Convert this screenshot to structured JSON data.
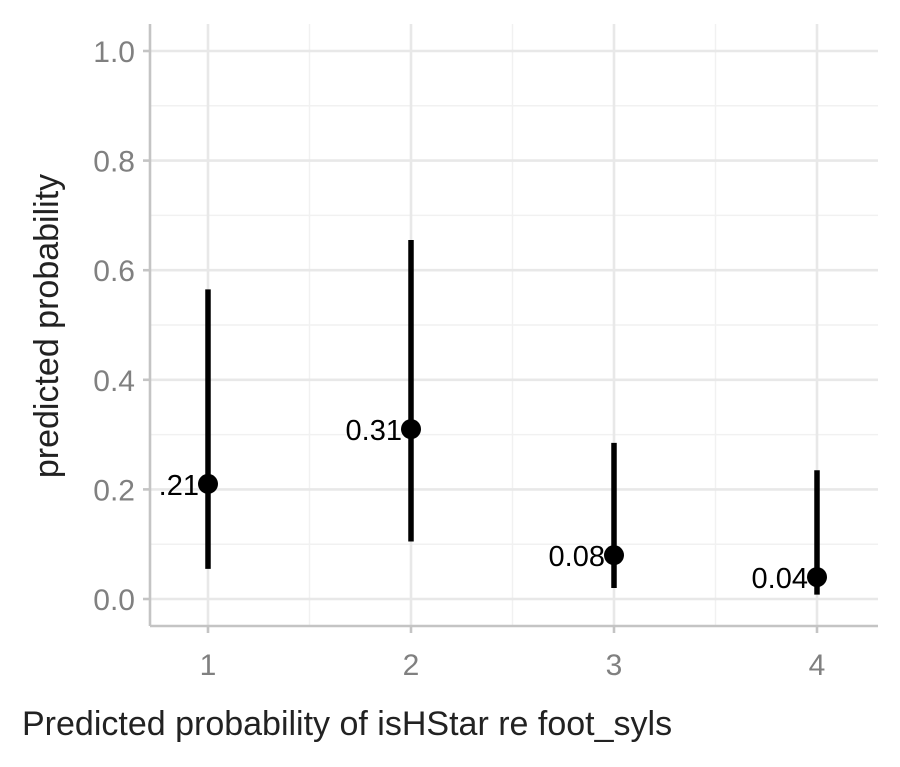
{
  "chart_data": {
    "type": "pointrange",
    "x": [
      1,
      2,
      3,
      4
    ],
    "y": [
      0.21,
      0.31,
      0.08,
      0.04
    ],
    "lower": [
      0.055,
      0.105,
      0.02,
      0.008
    ],
    "upper": [
      0.565,
      0.655,
      0.285,
      0.235
    ],
    "labels": [
      ".21",
      "0.31",
      "0.08",
      "0.04"
    ],
    "xlabel": "Predicted probability of isHStar re foot_syls",
    "ylabel": "predicted probability",
    "xticks": [
      "1",
      "2",
      "3",
      "4"
    ],
    "yticks": [
      "0.0",
      "0.2",
      "0.4",
      "0.6",
      "0.8",
      "1.0"
    ],
    "ylim": [
      0,
      1
    ],
    "grid": true,
    "legend": "none"
  }
}
